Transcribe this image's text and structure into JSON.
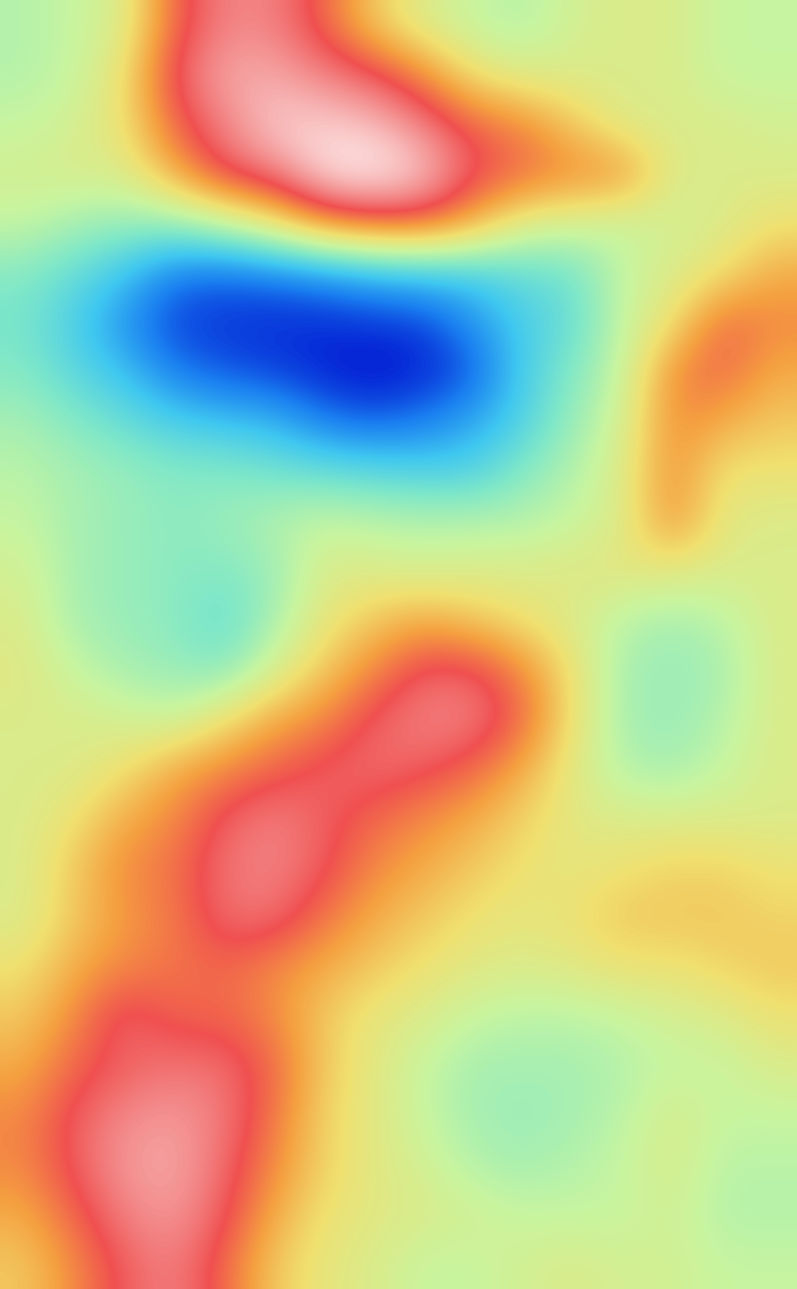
{
  "chart_data": {
    "type": "heatmap",
    "tick_labels": false,
    "cells": [
      [
        4.2,
        4.5,
        5,
        7.5,
        8.5,
        8.5,
        7.5,
        6,
        5,
        4.5,
        4.2,
        4.8,
        5,
        5,
        4.5,
        4.5
      ],
      [
        4.2,
        4.5,
        5.5,
        8,
        9,
        9,
        8.5,
        8,
        7,
        5.5,
        5,
        5,
        5,
        5,
        4.5,
        4.5
      ],
      [
        4.5,
        4.8,
        5.5,
        7.5,
        8.5,
        9.5,
        9.5,
        9.3,
        8.5,
        7.5,
        7,
        6,
        5,
        5,
        5,
        4.8
      ],
      [
        4.8,
        5,
        5,
        6.5,
        8,
        8.5,
        9.8,
        10,
        9.5,
        8,
        7.5,
        7,
        7,
        5,
        5,
        5
      ],
      [
        4.5,
        4,
        3.8,
        3.8,
        4.5,
        5.5,
        7,
        7.5,
        7.5,
        6.5,
        5,
        4.8,
        4.5,
        4.8,
        5,
        5.5
      ],
      [
        3.5,
        3,
        2.3,
        1.2,
        1,
        1.2,
        1.5,
        2,
        2.3,
        2.5,
        3,
        3.2,
        4.5,
        5,
        5.5,
        6.5
      ],
      [
        3.3,
        2.5,
        1.5,
        0.6,
        0.5,
        0.4,
        0.4,
        0.5,
        0.6,
        1.5,
        2.5,
        3,
        4.5,
        5.5,
        7.5,
        7
      ],
      [
        3.5,
        2.8,
        2.2,
        1.2,
        0.8,
        0.6,
        0.3,
        0.1,
        0.3,
        0.8,
        2.5,
        3.5,
        4.5,
        7,
        7.5,
        6.5
      ],
      [
        4,
        3.5,
        3,
        2.5,
        2.2,
        2,
        1.2,
        0.9,
        1.2,
        1.8,
        2.6,
        3.8,
        4.8,
        7,
        6.5,
        6
      ],
      [
        4.3,
        4,
        3.8,
        3.5,
        3.5,
        3.2,
        3,
        2.8,
        2.6,
        2.6,
        3.5,
        4.2,
        5,
        7,
        5.5,
        5.5
      ],
      [
        4.5,
        4,
        3.8,
        3.6,
        3.8,
        4.2,
        4.5,
        4.3,
        4.2,
        4.2,
        4.2,
        4.5,
        5,
        7,
        5.2,
        5
      ],
      [
        4.8,
        4,
        3.8,
        3.6,
        3.5,
        3.8,
        5,
        5,
        4.8,
        5,
        5,
        5.2,
        5.3,
        5.2,
        5,
        5
      ],
      [
        5,
        4,
        3.8,
        3.6,
        3,
        4,
        5.3,
        6,
        6.5,
        6,
        5.5,
        5,
        4.3,
        4,
        4.3,
        5
      ],
      [
        5.2,
        4.5,
        4,
        3.8,
        3.5,
        4.8,
        6,
        7,
        8,
        8,
        7,
        5.5,
        4,
        3.8,
        4,
        5
      ],
      [
        5,
        5,
        4.8,
        4.5,
        5.5,
        6.5,
        7,
        8,
        8.5,
        8.5,
        7.5,
        5.5,
        4,
        3.8,
        4.2,
        5
      ],
      [
        5,
        5,
        5.5,
        6.5,
        7,
        7.5,
        8,
        8.2,
        8,
        7.5,
        6.5,
        5.2,
        4.2,
        4,
        4.5,
        5
      ],
      [
        5,
        5.5,
        6.5,
        7,
        8,
        8.5,
        8,
        7.5,
        7,
        6.5,
        5.8,
        5.2,
        5,
        5,
        5,
        5
      ],
      [
        5,
        6,
        7,
        7.3,
        8.3,
        8.5,
        8,
        7,
        6.5,
        6,
        5.5,
        5.3,
        5.5,
        5.8,
        5.8,
        5.5
      ],
      [
        5,
        6,
        6.8,
        7.2,
        8.2,
        8.3,
        7.3,
        6.5,
        6,
        5.5,
        5.3,
        5.5,
        6,
        6,
        6,
        5.8
      ],
      [
        5.5,
        6.5,
        7,
        7.3,
        7.5,
        7,
        6.5,
        6,
        5.5,
        5.2,
        5,
        5.2,
        5.5,
        5.5,
        5.8,
        6
      ],
      [
        6,
        7,
        8.2,
        7.5,
        7.5,
        7,
        6,
        5.3,
        5,
        4.5,
        4.3,
        4.3,
        4.5,
        4.8,
        5,
        5.5
      ],
      [
        6.5,
        7.5,
        8,
        8.3,
        8.2,
        7.5,
        6,
        5.2,
        4.5,
        4,
        4,
        4,
        4.2,
        4.5,
        4.5,
        5
      ],
      [
        7,
        8,
        8.6,
        8.8,
        8.4,
        7.3,
        5.8,
        5.2,
        4.5,
        4,
        3.8,
        4,
        4.3,
        5,
        4.5,
        4.5
      ],
      [
        7,
        8,
        8.8,
        9,
        8.2,
        7,
        5.8,
        5.2,
        4.8,
        4.2,
        4,
        4.2,
        4.5,
        5,
        4.3,
        4.3
      ],
      [
        6.5,
        7.5,
        8.5,
        8.8,
        8,
        6.5,
        5.5,
        5.2,
        5,
        4.8,
        4.5,
        4.5,
        4.5,
        4.8,
        4.2,
        4.2
      ],
      [
        6,
        7,
        8,
        8.5,
        7.5,
        6,
        5.3,
        5,
        4.5,
        4.5,
        4.8,
        5,
        4.8,
        4.8,
        4.5,
        4.5
      ]
    ]
  }
}
